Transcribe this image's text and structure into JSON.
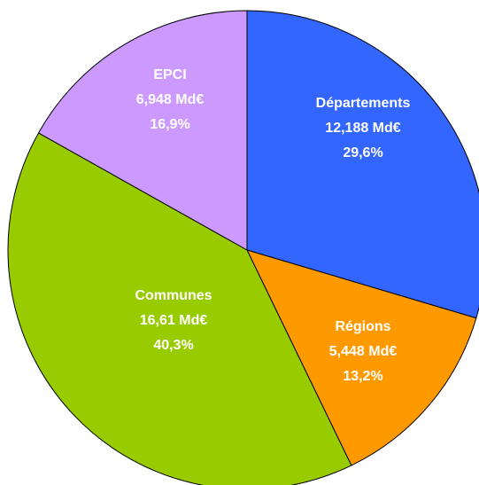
{
  "chart_data": {
    "type": "pie",
    "categories": [
      "Départements",
      "Régions",
      "Communes",
      "EPCI"
    ],
    "values": [
      12.188,
      5.448,
      16.61,
      6.948
    ],
    "value_labels": [
      "12,188 Md€",
      "5,448 Md€",
      "16,61 Md€",
      "6,948 Md€"
    ],
    "percents": [
      29.6,
      13.2,
      40.3,
      16.9
    ],
    "percent_labels": [
      "29,6%",
      "13,2%",
      "40,3%",
      "16,9%"
    ],
    "colors": [
      "#3366ff",
      "#ff9900",
      "#99cc00",
      "#cc99ff"
    ]
  }
}
